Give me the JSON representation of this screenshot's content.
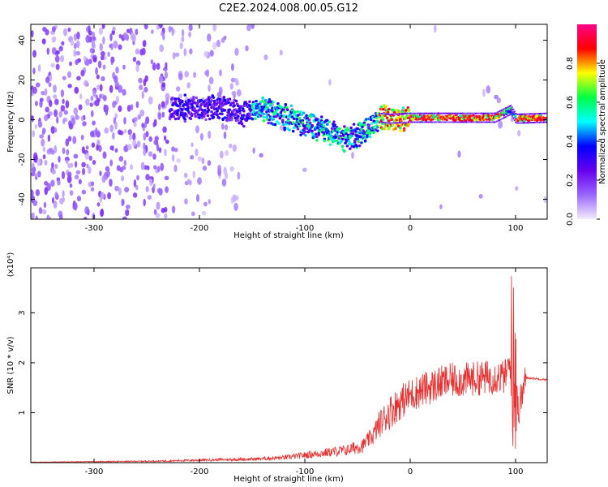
{
  "title": "C2E2.2024.008.00.05.G12",
  "chart_data": [
    {
      "type": "heatmap",
      "xlabel": "Height of straight line (km)",
      "ylabel": "Frequency (Hz)",
      "xlim": [
        -360,
        130
      ],
      "ylim": [
        -50,
        48
      ],
      "xticks": [
        -300,
        -200,
        -100,
        0,
        100
      ],
      "yticks": [
        -40,
        -20,
        0,
        20,
        40
      ],
      "colorbar": {
        "label": "Normalized spectral amplitude",
        "ticks": [
          "0.0",
          "0.2",
          "0.4",
          "0.6",
          "0.8"
        ],
        "range": [
          0,
          1
        ],
        "colormap": [
          "#f4ecfc",
          "#9966ff",
          "#6600ee",
          "#0000ff",
          "#00ffff",
          "#00ff44",
          "#ffff00",
          "#ff0000",
          "#ff0088"
        ]
      },
      "ridge": {
        "x": [
          -228,
          -200,
          -180,
          -160,
          -140,
          -120,
          -100,
          -80,
          -60,
          -50,
          -40,
          -30,
          -20,
          0,
          20,
          60,
          80,
          95,
          100,
          130
        ],
        "freq": [
          6,
          6,
          6,
          3,
          5,
          2,
          -2,
          -5,
          -10,
          -8,
          -4,
          1,
          0.5,
          1,
          1,
          1,
          1,
          5,
          0.5,
          1
        ]
      }
    },
    {
      "type": "line",
      "xlabel": "Height of straight line (km)",
      "ylabel": "SNR (10 * v/v)",
      "y_multiplier": "(x10⁴)",
      "xlim": [
        -360,
        130
      ],
      "ylim": [
        0,
        3.9
      ],
      "xticks": [
        -300,
        -200,
        -100,
        0,
        100
      ],
      "yticks": [
        1,
        2,
        3
      ],
      "color": "#e83030",
      "envelope": {
        "x": [
          -360,
          -300,
          -240,
          -200,
          -180,
          -150,
          -120,
          -100,
          -80,
          -60,
          -45,
          -35,
          -30,
          -20,
          -10,
          0,
          10,
          20,
          30,
          40,
          50,
          60,
          70,
          80,
          90,
          95,
          98,
          100,
          102,
          110,
          130
        ],
        "y": [
          0.01,
          0.02,
          0.03,
          0.05,
          0.06,
          0.07,
          0.1,
          0.15,
          0.2,
          0.25,
          0.35,
          0.55,
          0.75,
          1.0,
          1.2,
          1.35,
          1.45,
          1.52,
          1.6,
          1.65,
          1.65,
          1.68,
          1.7,
          1.72,
          1.72,
          2.0,
          0.5,
          2.3,
          1.0,
          1.7,
          1.66
        ]
      }
    }
  ]
}
